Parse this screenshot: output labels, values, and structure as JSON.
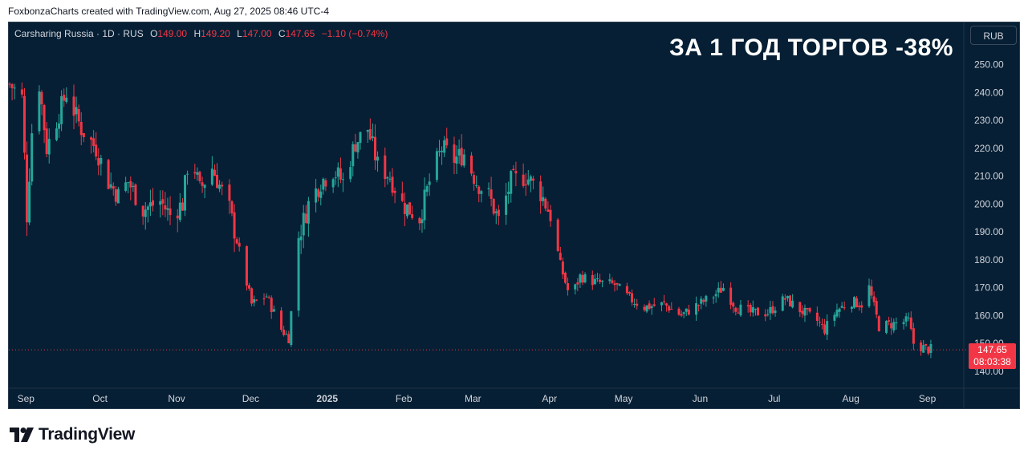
{
  "credit": "FoxbonzaCharts created with TradingView.com, Aug 27, 2025 08:46 UTC-4",
  "legend": {
    "symbol": "Carsharing Russia · 1D · RUS",
    "open_label": "O",
    "open": "149.00",
    "high_label": "H",
    "high": "149.20",
    "low_label": "L",
    "low": "147.00",
    "close_label": "C",
    "close": "147.65",
    "change": "−1.10 (−0.74%)"
  },
  "headline": "ЗА 1 ГОД ТОРГОВ -38%",
  "currency_button": "RUB",
  "last_price": {
    "price": "147.65",
    "countdown": "08:03:38"
  },
  "brand": {
    "name": "TradingView",
    "logo_icon": "tradingview-logo-icon"
  },
  "colors": {
    "background": "#061f34",
    "up": "#26a69a",
    "down": "#f23645",
    "text": "#d1d4dc"
  },
  "chart_data": {
    "type": "candlestick",
    "title": "",
    "ylim": [
      135,
      257
    ],
    "y_ticks": [
      250,
      240,
      230,
      220,
      210,
      200,
      190,
      180,
      170,
      160,
      150,
      140
    ],
    "y_tick_labels": [
      "250.00",
      "240.00",
      "230.00",
      "220.00",
      "210.00",
      "200.00",
      "190.00",
      "180.00",
      "170.00",
      "160.00",
      "150.00",
      "140.00"
    ],
    "x_tick_labels": [
      "Sep",
      "Oct",
      "Nov",
      "Dec",
      "2025",
      "Feb",
      "Mar",
      "Apr",
      "May",
      "Jun",
      "Jul",
      "Aug",
      "Sep"
    ],
    "grid": false,
    "last_close": 147.65,
    "close_path": [
      [
        "2024-08-28",
        243
      ],
      [
        "2024-09-02",
        238
      ],
      [
        "2024-09-04",
        196
      ],
      [
        "2024-09-06",
        226
      ],
      [
        "2024-09-09",
        243
      ],
      [
        "2024-09-12",
        220
      ],
      [
        "2024-09-16",
        230
      ],
      [
        "2024-09-20",
        240
      ],
      [
        "2024-09-26",
        227
      ],
      [
        "2024-10-02",
        220
      ],
      [
        "2024-10-07",
        208
      ],
      [
        "2024-10-11",
        203
      ],
      [
        "2024-10-15",
        208
      ],
      [
        "2024-10-21",
        198
      ],
      [
        "2024-10-28",
        201
      ],
      [
        "2024-11-01",
        196
      ],
      [
        "2024-11-06",
        200
      ],
      [
        "2024-11-09",
        220
      ],
      [
        "2024-11-13",
        205
      ],
      [
        "2024-11-18",
        213
      ],
      [
        "2024-11-25",
        198
      ],
      [
        "2024-11-29",
        183
      ],
      [
        "2024-12-04",
        164
      ],
      [
        "2024-12-10",
        167
      ],
      [
        "2024-12-16",
        155
      ],
      [
        "2024-12-19",
        152
      ],
      [
        "2024-12-23",
        188
      ],
      [
        "2024-12-27",
        200
      ],
      [
        "2025-01-01",
        208
      ],
      [
        "2025-01-06",
        212
      ],
      [
        "2025-01-10",
        208
      ],
      [
        "2025-01-15",
        222
      ],
      [
        "2025-01-20",
        227
      ],
      [
        "2025-01-24",
        214
      ],
      [
        "2025-01-29",
        210
      ],
      [
        "2025-02-03",
        200
      ],
      [
        "2025-02-10",
        195
      ],
      [
        "2025-02-14",
        208
      ],
      [
        "2025-02-19",
        220
      ],
      [
        "2025-02-24",
        216
      ],
      [
        "2025-02-28",
        218
      ],
      [
        "2025-03-05",
        208
      ],
      [
        "2025-03-10",
        203
      ],
      [
        "2025-03-14",
        194
      ],
      [
        "2025-03-19",
        208
      ],
      [
        "2025-03-25",
        210
      ],
      [
        "2025-03-31",
        204
      ],
      [
        "2025-04-04",
        196
      ],
      [
        "2025-04-08",
        178
      ],
      [
        "2025-04-12",
        166
      ],
      [
        "2025-04-16",
        174
      ],
      [
        "2025-04-22",
        172
      ],
      [
        "2025-04-30",
        171
      ],
      [
        "2025-05-06",
        166
      ],
      [
        "2025-05-12",
        163
      ],
      [
        "2025-05-20",
        164
      ],
      [
        "2025-05-27",
        160
      ],
      [
        "2025-06-03",
        164
      ],
      [
        "2025-06-09",
        167
      ],
      [
        "2025-06-13",
        170
      ],
      [
        "2025-06-18",
        163
      ],
      [
        "2025-06-24",
        161
      ],
      [
        "2025-07-01",
        161
      ],
      [
        "2025-07-08",
        166
      ],
      [
        "2025-07-14",
        162
      ],
      [
        "2025-07-21",
        158
      ],
      [
        "2025-07-24",
        155
      ],
      [
        "2025-07-29",
        162
      ],
      [
        "2025-08-04",
        165
      ],
      [
        "2025-08-08",
        164
      ],
      [
        "2025-08-11",
        170
      ],
      [
        "2025-08-15",
        156
      ],
      [
        "2025-08-21",
        157
      ],
      [
        "2025-08-27",
        158
      ],
      [
        "2025-08-29",
        150
      ],
      [
        "2025-09-03",
        148
      ],
      [
        "2025-09-06",
        147.65
      ]
    ]
  }
}
